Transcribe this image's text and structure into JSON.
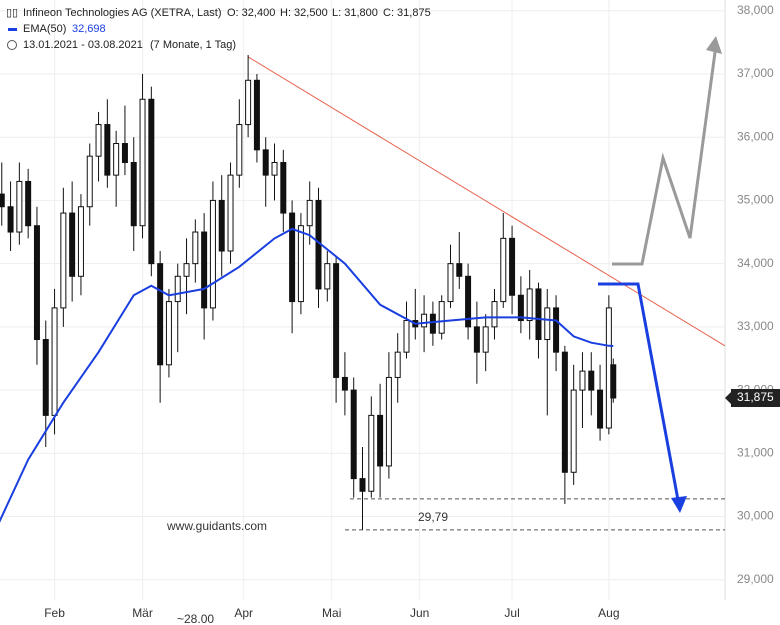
{
  "header": {
    "title": "Infineon Technologies AG (XETRA, Last)",
    "open": "O: 32,400",
    "high": "H: 32,500",
    "low": "L: 31,800",
    "close_label": "C: 31,875",
    "close": "31,875",
    "ema_name": "EMA(50)",
    "ema_value": "32,698",
    "range": "13.01.2021 - 03.08.2021",
    "duration": "(7 Monate, 1 Tag)"
  },
  "chart_data": {
    "type": "candlestick",
    "watermark": "www.guidants.com",
    "bottom_note": "~28.00",
    "xlim": [
      1.6,
      166.4
    ],
    "xticks": [
      {
        "value": 14,
        "label": "Feb"
      },
      {
        "value": 34,
        "label": "Mär"
      },
      {
        "value": 57,
        "label": "Apr"
      },
      {
        "value": 77,
        "label": "Mai"
      },
      {
        "value": 97,
        "label": "Jun"
      },
      {
        "value": 118,
        "label": "Jul"
      },
      {
        "value": 140,
        "label": "Aug"
      }
    ],
    "ylim": [
      28.68,
      38.17
    ],
    "yticks": [
      {
        "value": 29,
        "label": "29,000"
      },
      {
        "value": 30,
        "label": "30,000"
      },
      {
        "value": 31,
        "label": "31,000"
      },
      {
        "value": 32,
        "label": "32,000"
      },
      {
        "value": 33,
        "label": "33,000"
      },
      {
        "value": 34,
        "label": "34,000"
      },
      {
        "value": 35,
        "label": "35,000"
      },
      {
        "value": 36,
        "label": "36,000"
      },
      {
        "value": 37,
        "label": "37,000"
      },
      {
        "value": 38,
        "label": "38,000"
      }
    ],
    "grid": true,
    "up_color": "#ffffff",
    "down_color": "#111111",
    "x": [
      0,
      2,
      4,
      6,
      8,
      10,
      12,
      14,
      16,
      18,
      20,
      22,
      24,
      26,
      28,
      30,
      32,
      34,
      36,
      38,
      40,
      42,
      44,
      46,
      48,
      50,
      52,
      54,
      56,
      58,
      60,
      62,
      64,
      66,
      68,
      70,
      72,
      74,
      76,
      78,
      80,
      82,
      84,
      86,
      88,
      90,
      92,
      94,
      96,
      98,
      100,
      102,
      104,
      106,
      108,
      110,
      112,
      114,
      116,
      118,
      120,
      122,
      124,
      126,
      128,
      130,
      132,
      134,
      136,
      138,
      140,
      141
    ],
    "open": [
      34.8,
      35.1,
      34.9,
      34.5,
      35.3,
      34.6,
      32.8,
      31.6,
      33.3,
      34.8,
      33.8,
      34.9,
      35.7,
      36.2,
      35.4,
      35.9,
      35.6,
      34.6,
      36.6,
      34.0,
      32.4,
      33.4,
      33.8,
      34.0,
      34.5,
      33.3,
      35.0,
      34.2,
      35.4,
      36.2,
      36.9,
      35.8,
      35.4,
      35.6,
      34.8,
      33.4,
      34.6,
      35.0,
      33.6,
      34.0,
      32.2,
      32.0,
      30.6,
      30.4,
      31.6,
      30.8,
      32.2,
      32.6,
      33.1,
      33.0,
      33.2,
      32.9,
      33.4,
      34.0,
      33.8,
      33.0,
      32.6,
      33.0,
      33.4,
      34.4,
      33.5,
      33.1,
      33.6,
      32.8,
      33.3,
      32.6,
      30.7,
      32.0,
      32.3,
      32.0,
      31.4,
      32.4
    ],
    "high": [
      35.4,
      35.6,
      35.3,
      35.6,
      35.5,
      34.9,
      33.1,
      33.6,
      35.2,
      35.3,
      35.1,
      35.9,
      36.4,
      36.6,
      36.1,
      36.5,
      36.0,
      37.0,
      36.8,
      34.2,
      33.6,
      34.0,
      34.4,
      34.7,
      34.8,
      35.3,
      35.4,
      35.6,
      36.6,
      37.3,
      37.0,
      36.0,
      35.9,
      35.8,
      35.0,
      34.8,
      35.3,
      35.2,
      34.2,
      34.1,
      32.6,
      32.2,
      31.1,
      31.9,
      32.1,
      32.6,
      32.9,
      33.4,
      33.6,
      33.5,
      33.4,
      33.5,
      34.3,
      34.5,
      34.0,
      33.4,
      33.2,
      33.6,
      34.8,
      34.6,
      33.8,
      33.9,
      33.7,
      33.6,
      33.5,
      32.7,
      32.4,
      32.6,
      32.6,
      32.4,
      33.5,
      32.5
    ],
    "low": [
      34.5,
      34.6,
      34.2,
      34.3,
      34.4,
      32.4,
      31.1,
      31.3,
      33.0,
      33.4,
      33.5,
      34.6,
      35.3,
      35.2,
      34.9,
      35.4,
      34.2,
      34.4,
      33.8,
      31.8,
      32.2,
      32.6,
      33.2,
      33.7,
      32.8,
      33.1,
      33.8,
      34.0,
      35.2,
      36.0,
      35.6,
      34.9,
      35.0,
      34.5,
      32.9,
      33.2,
      34.3,
      33.3,
      33.4,
      31.8,
      31.6,
      30.3,
      29.79,
      30.3,
      30.3,
      30.6,
      31.8,
      32.5,
      32.8,
      32.6,
      32.7,
      32.8,
      33.3,
      33.6,
      32.8,
      32.1,
      32.3,
      32.8,
      33.3,
      33.2,
      32.9,
      32.8,
      32.5,
      31.6,
      32.3,
      30.2,
      30.5,
      31.4,
      31.6,
      31.2,
      31.3,
      31.8
    ],
    "close": [
      35.1,
      34.9,
      34.5,
      35.3,
      34.6,
      32.8,
      31.6,
      33.3,
      34.8,
      33.8,
      34.9,
      35.7,
      36.2,
      35.4,
      35.9,
      35.6,
      34.6,
      36.6,
      34.0,
      32.4,
      33.4,
      33.8,
      34.0,
      34.5,
      33.3,
      35.0,
      34.2,
      35.4,
      36.2,
      36.9,
      35.8,
      35.4,
      35.6,
      34.8,
      33.4,
      34.6,
      35.0,
      33.6,
      34.0,
      32.2,
      32.0,
      30.6,
      30.4,
      31.6,
      30.8,
      32.2,
      32.6,
      33.1,
      33.0,
      33.2,
      32.9,
      33.4,
      34.0,
      33.8,
      33.0,
      32.6,
      33.0,
      33.4,
      34.4,
      33.5,
      33.1,
      33.6,
      32.8,
      33.3,
      32.6,
      30.7,
      32.0,
      32.3,
      32.0,
      31.4,
      33.3,
      31.875
    ],
    "ema": {
      "name": "EMA(50)",
      "color": "#1a3fe0",
      "x": [
        0,
        8,
        16,
        24,
        32,
        36,
        40,
        48,
        56,
        64,
        68,
        72,
        80,
        88,
        96,
        104,
        112,
        120,
        128,
        132,
        136,
        140,
        141
      ],
      "values": [
        29.7,
        30.9,
        31.8,
        32.6,
        33.5,
        33.65,
        33.5,
        33.6,
        33.95,
        34.4,
        34.55,
        34.45,
        34.0,
        33.35,
        33.05,
        33.1,
        33.15,
        33.15,
        33.1,
        32.85,
        32.75,
        32.7,
        32.698
      ]
    },
    "trendline": {
      "color": "#e8604c",
      "x": [
        58,
        166.4
      ],
      "values": [
        37.27,
        32.7
      ]
    },
    "levels": [
      30.28,
      {
        "value": 29.79,
        "label": "29,79"
      }
    ]
  }
}
